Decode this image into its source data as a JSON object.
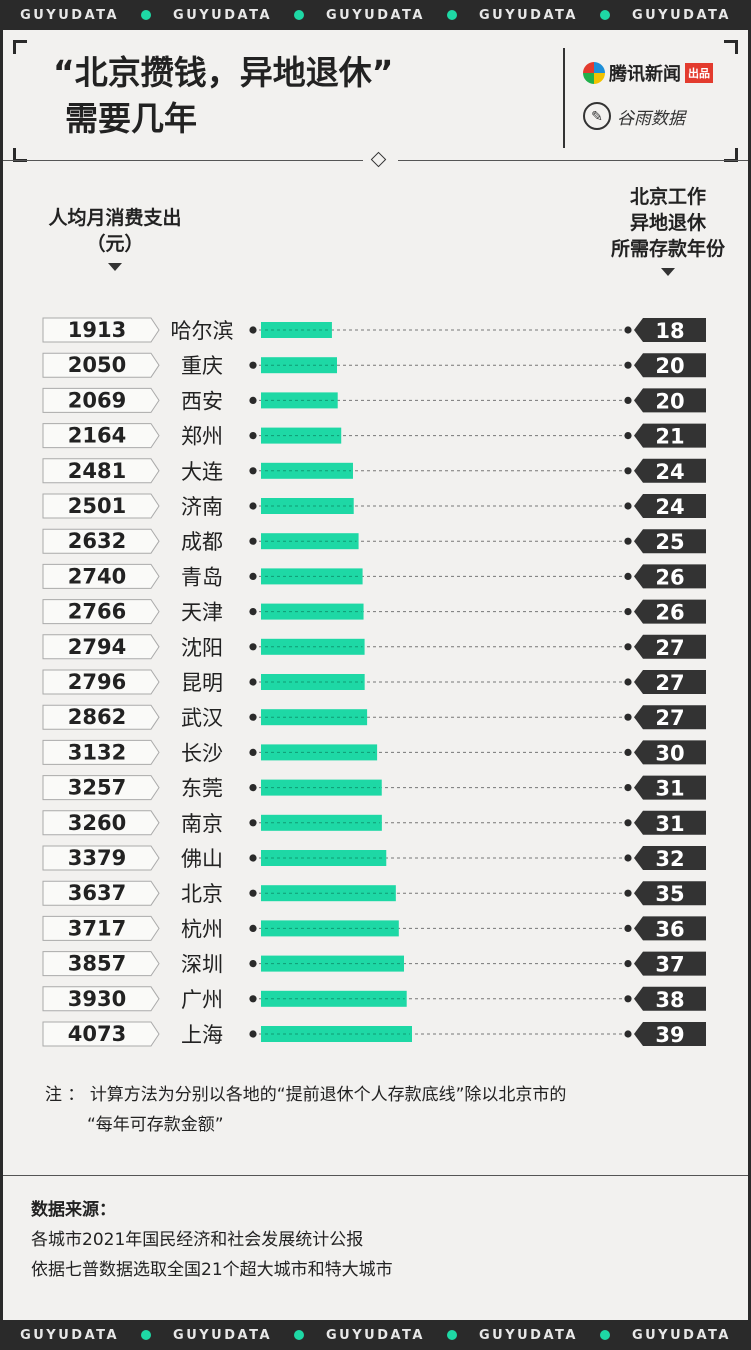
{
  "brand_strip": {
    "word": "GUYUDATA",
    "repeat": 5
  },
  "title": {
    "line1": "“北京攒钱，异地退休”",
    "line2": "需要几年"
  },
  "logos": {
    "tencent": {
      "text": "腾讯新闻",
      "badge": "出品",
      "icon": "tencent-news-icon"
    },
    "guyu": {
      "text": "谷雨数据",
      "icon": "guyu-data-icon"
    }
  },
  "headers": {
    "left_line1": "人均月消费支出",
    "left_line2": "（元）",
    "right_line1": "北京工作",
    "right_line2": "异地退休",
    "right_line3": "所需存款年份"
  },
  "colors": {
    "accent": "#1ed8a5",
    "dark": "#2a2a2a",
    "background": "#f2f1ef"
  },
  "chart_data": {
    "type": "bar",
    "categories": [
      "哈尔滨",
      "重庆",
      "西安",
      "郑州",
      "大连",
      "济南",
      "成都",
      "青岛",
      "天津",
      "沈阳",
      "昆明",
      "武汉",
      "长沙",
      "东莞",
      "南京",
      "佛山",
      "北京",
      "杭州",
      "深圳",
      "广州",
      "上海"
    ],
    "monthly_spending": [
      1913,
      2050,
      2069,
      2164,
      2481,
      2501,
      2632,
      2740,
      2766,
      2794,
      2796,
      2862,
      3132,
      3257,
      3260,
      3379,
      3637,
      3717,
      3857,
      3930,
      4073
    ],
    "years_needed": [
      18,
      20,
      20,
      21,
      24,
      24,
      25,
      26,
      26,
      27,
      27,
      27,
      30,
      31,
      31,
      32,
      35,
      36,
      37,
      38,
      39
    ],
    "bar_value": "monthly_spending"
  },
  "note": {
    "prefix": "注 ：",
    "line1": "计算方法为分别以各地的“提前退休个人存款底线”除以北京市的",
    "line2": "“每年可存款金额”"
  },
  "source": {
    "heading": "数据来源：",
    "line1": "各城市2021年国民经济和社会发展统计公报",
    "line2": "依据七普数据选取全国21个超大城市和特大城市"
  }
}
